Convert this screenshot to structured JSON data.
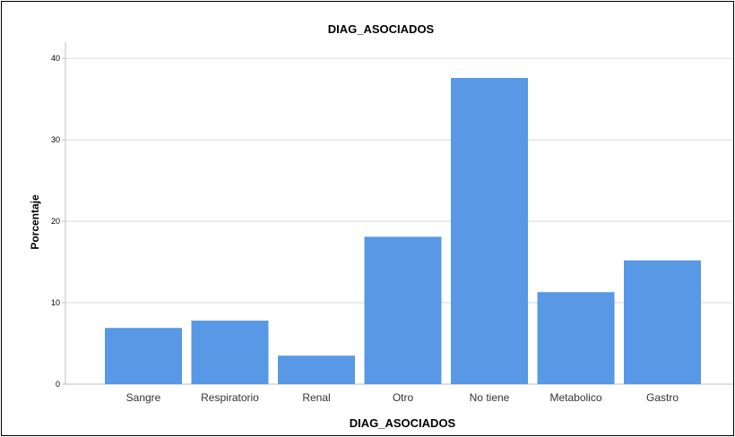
{
  "chart_data": {
    "type": "bar",
    "title": "DIAG_ASOCIADOS",
    "xlabel": "DIAG_ASOCIADOS",
    "ylabel": "Porcentaje",
    "categories": [
      "Sangre",
      "Respiratorio",
      "Renal",
      "Otro",
      "No tiene",
      "Metabolico",
      "Gastro"
    ],
    "values": [
      6.9,
      7.8,
      3.5,
      18.1,
      37.6,
      11.3,
      15.2
    ],
    "ylim": [
      0,
      42
    ],
    "yticks": [
      "0",
      "10",
      "20",
      "30",
      "40"
    ],
    "grid": true,
    "bar_color": "#5898e4"
  }
}
